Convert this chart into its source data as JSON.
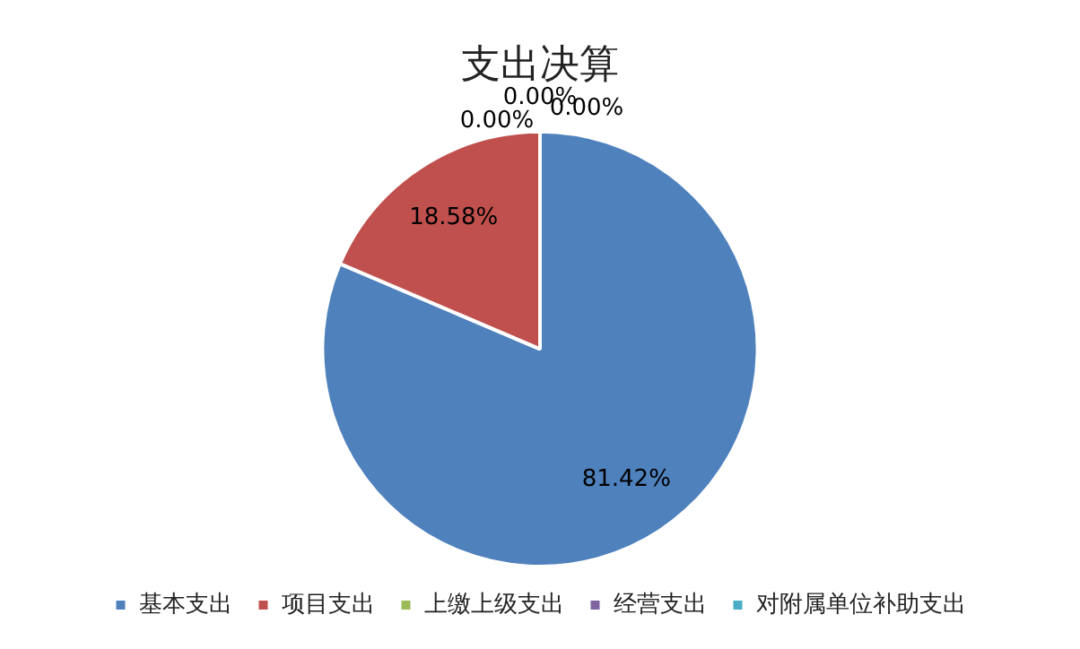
{
  "chart_data": {
    "type": "pie",
    "title": "支出决算",
    "categories": [
      "基本支出",
      "项目支出",
      "上缴上级支出",
      "经营支出",
      "对附属单位补助支出"
    ],
    "values": [
      81.42,
      18.58,
      0,
      0,
      0
    ],
    "value_labels": [
      "81.42%",
      "18.58%",
      "0.00%",
      "0.00%",
      "0.00%"
    ],
    "colors": [
      "#4f81bd",
      "#c0504d",
      "#9bbb59",
      "#8064a2",
      "#4bacc6"
    ],
    "legend": "bottom"
  }
}
